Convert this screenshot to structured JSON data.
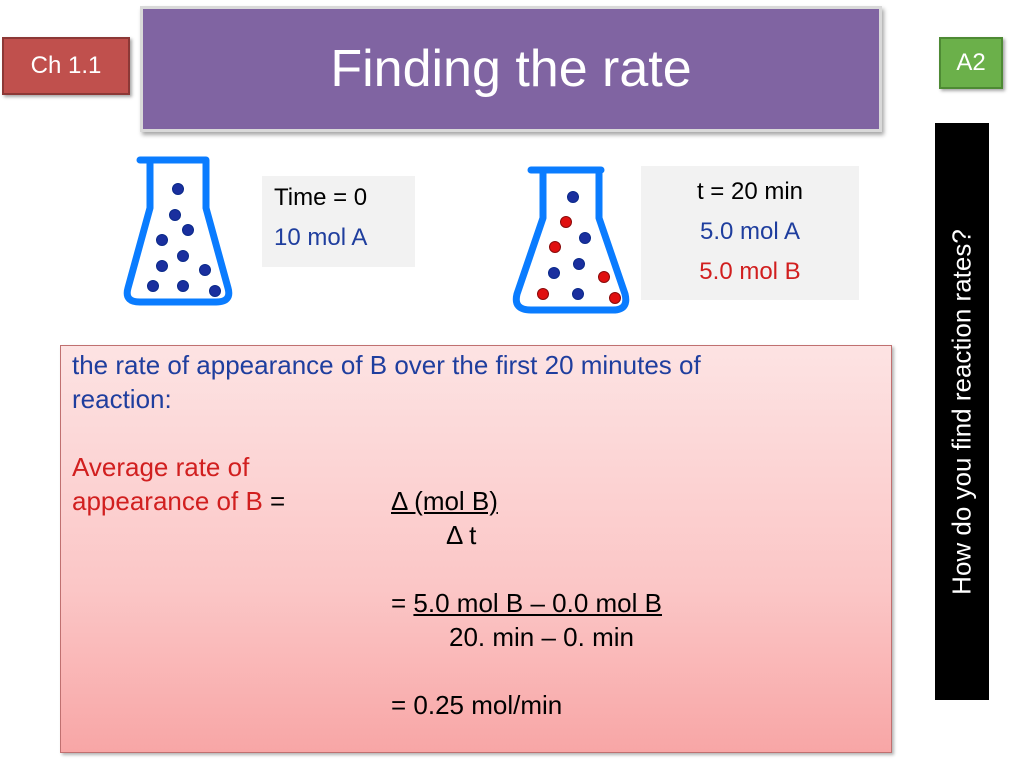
{
  "header": {
    "chapter_badge": "Ch 1.1",
    "title": "Finding the rate",
    "level_badge": "A2"
  },
  "sidebar": {
    "question": "How do you find reaction rates?"
  },
  "flask_a": {
    "time_label": "Time = 0",
    "amount_a": "10 mol A",
    "colors": {
      "glass": "#0a7cff",
      "particle_a": "#1a2f9e"
    }
  },
  "flask_b": {
    "time_label": "t = 20 min",
    "amount_a": "5.0 mol A",
    "amount_b": "5.0 mol B",
    "colors": {
      "glass": "#0a7cff",
      "particle_a": "#1a2f9e",
      "particle_b": "#e01010"
    }
  },
  "explanation": {
    "line1": "the rate of appearance of B over the first 20 minutes of",
    "line2": "reaction:",
    "avg_label_1": "Average rate of",
    "avg_label_2": "appearance of B",
    "equals": "=",
    "numerator": "Δ (mol B)",
    "denominator": "Δ t",
    "calc_eq": "=",
    "calc_numerator": "5.0 mol B – 0.0 mol B",
    "calc_denominator": "20. min – 0. min",
    "result": "= 0.25 mol/min"
  }
}
